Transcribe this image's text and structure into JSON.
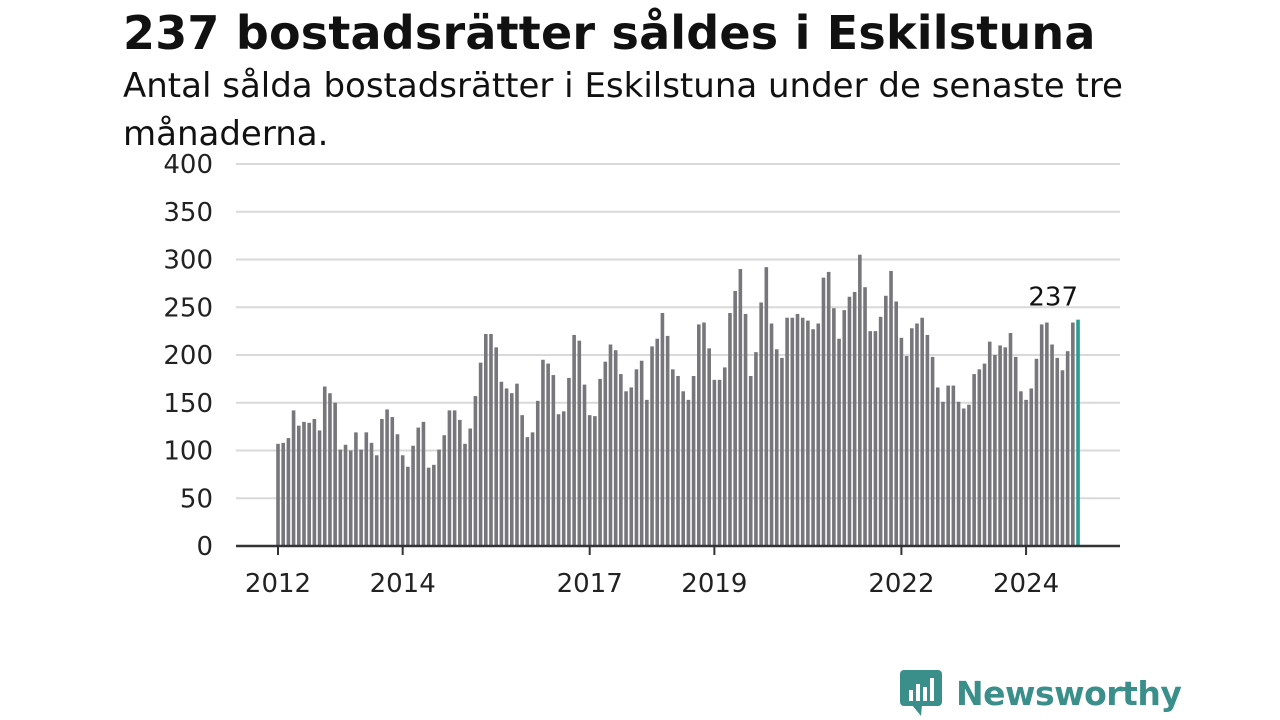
{
  "header": {
    "title": "237 bostadsrätter såldes i Eskilstuna",
    "subtitle": "Antal sålda bostadsrätter i Eskilstuna under de senaste tre månaderna."
  },
  "brand": {
    "name": "Newsworthy",
    "icon": "newsworthy-logo-icon",
    "color": "#3a8f8a"
  },
  "chart_data": {
    "type": "bar",
    "title": "237 bostadsrätter såldes i Eskilstuna",
    "subtitle": "Antal sålda bostadsrätter i Eskilstuna under de senaste tre månaderna.",
    "ylim": [
      0,
      400
    ],
    "yticks": [
      0,
      50,
      100,
      150,
      200,
      250,
      300,
      350,
      400
    ],
    "grid": true,
    "xtick_labels": [
      "2012",
      "2014",
      "2017",
      "2019",
      "2022",
      "2024"
    ],
    "x_start": "2012-01",
    "x_end": "2025-01",
    "bar_color": "#77777b",
    "highlight_color": "#2a9d92",
    "highlight_label": "237",
    "values": [
      107,
      108,
      113,
      142,
      126,
      130,
      129,
      133,
      121,
      167,
      160,
      150,
      101,
      106,
      100,
      119,
      101,
      119,
      108,
      95,
      133,
      143,
      135,
      117,
      95,
      83,
      105,
      124,
      130,
      82,
      85,
      101,
      116,
      142,
      142,
      132,
      107,
      123,
      157,
      192,
      222,
      222,
      208,
      172,
      165,
      160,
      170,
      137,
      114,
      119,
      152,
      195,
      191,
      179,
      138,
      141,
      176,
      221,
      215,
      169,
      137,
      136,
      175,
      193,
      211,
      205,
      180,
      162,
      166,
      185,
      194,
      153,
      209,
      217,
      244,
      220,
      185,
      178,
      162,
      153,
      178,
      232,
      234,
      207,
      174,
      174,
      187,
      244,
      267,
      290,
      243,
      178,
      203,
      255,
      292,
      233,
      206,
      197,
      239,
      239,
      243,
      239,
      236,
      227,
      233,
      281,
      287,
      249,
      217,
      247,
      261,
      266,
      305,
      271,
      225,
      225,
      240,
      262,
      288,
      256,
      218,
      199,
      228,
      233,
      239,
      221,
      198,
      166,
      151,
      168,
      168,
      151,
      144,
      148,
      180,
      185,
      191,
      214,
      200,
      210,
      208,
      223,
      198,
      162,
      153,
      165,
      196,
      232,
      234,
      211,
      197,
      184,
      204,
      234,
      237
    ]
  }
}
